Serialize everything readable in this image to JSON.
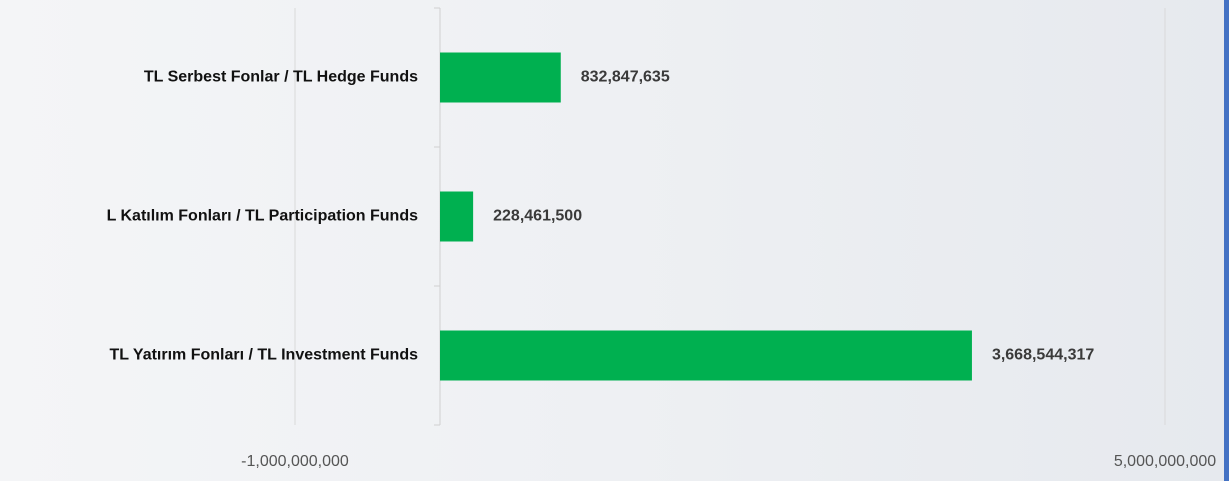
{
  "chart_data": {
    "type": "bar",
    "orientation": "horizontal",
    "categories": [
      "TL Serbest Fonlar / TL Hedge Funds",
      "L Katılım Fonları / TL Participation Funds",
      "TL Yatırım Fonları / TL Investment Funds"
    ],
    "values": [
      832847635,
      228461500,
      3668544317
    ],
    "value_labels": [
      "832,847,635",
      "228,461,500",
      "3,668,544,317"
    ],
    "color": "#00b050",
    "xlim": [
      -1000000000,
      5000000000
    ],
    "xticks": [
      {
        "value": -1000000000,
        "label": "-1,000,000,000"
      },
      {
        "value": 5000000000,
        "label": "5,000,000,000"
      }
    ],
    "grid": true
  }
}
